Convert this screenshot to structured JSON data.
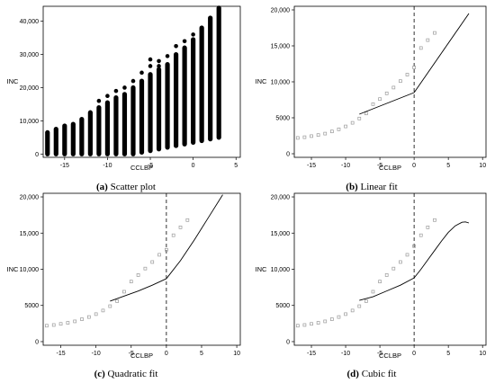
{
  "chart_data": [
    {
      "type": "scatter",
      "panel": "a",
      "caption_letter": "(a)",
      "caption_text": "Scatter plot",
      "xlabel": "CCLBP",
      "ylabel": "INC",
      "xlim": [
        -17.5,
        5.5
      ],
      "ylim": [
        -1000,
        44500
      ],
      "xticks": [
        -15,
        -10,
        -5,
        0,
        5
      ],
      "xtick_labels": [
        "-15",
        "-10",
        "-5",
        "0",
        "5"
      ],
      "yticks": [
        0,
        10000,
        20000,
        30000,
        40000
      ],
      "ytick_labels": [
        "0",
        "10,000",
        "20,000",
        "30,000",
        "40,000"
      ],
      "grid": false,
      "x": [
        -17,
        -16,
        -15,
        -14,
        -13,
        -12,
        -11,
        -10,
        -9,
        -8,
        -7,
        -6,
        -5,
        -4,
        -3,
        -2,
        -1,
        0,
        1,
        2,
        3
      ],
      "y_min": [
        0,
        0,
        0,
        0,
        0,
        0,
        0,
        0,
        0,
        0,
        0,
        500,
        1000,
        1500,
        2000,
        2500,
        3000,
        3500,
        4000,
        4500,
        5000
      ],
      "y_max": [
        6500,
        7500,
        8500,
        9000,
        10500,
        12500,
        14000,
        15500,
        17000,
        18000,
        20000,
        22000,
        24000,
        25500,
        27000,
        30000,
        32000,
        34500,
        38000,
        41000,
        44000
      ],
      "outliers": [
        {
          "x": -11,
          "y": 16000
        },
        {
          "x": -10,
          "y": 17500
        },
        {
          "x": -9,
          "y": 19000
        },
        {
          "x": -8,
          "y": 20000
        },
        {
          "x": -7,
          "y": 22000
        },
        {
          "x": -6,
          "y": 24500
        },
        {
          "x": -5,
          "y": 26500
        },
        {
          "x": -5,
          "y": 28500
        },
        {
          "x": -4,
          "y": 26500
        },
        {
          "x": -4,
          "y": 28000
        },
        {
          "x": -3,
          "y": 29500
        },
        {
          "x": -2,
          "y": 32500
        },
        {
          "x": -1,
          "y": 34000
        },
        {
          "x": 0,
          "y": 36000
        }
      ]
    },
    {
      "type": "line",
      "panel": "b",
      "caption_letter": "(b)",
      "caption_text": "Linear fit",
      "xlabel": "CCLBP",
      "ylabel": "INC",
      "xlim": [
        -17.5,
        10.5
      ],
      "ylim": [
        -500,
        20500
      ],
      "xticks": [
        -15,
        -10,
        -5,
        0,
        5,
        10
      ],
      "xtick_labels": [
        "-15",
        "-10",
        "-5",
        "0",
        "5",
        "10"
      ],
      "yticks": [
        0,
        5000,
        10000,
        15000,
        20000
      ],
      "ytick_labels": [
        "0",
        "5000",
        "10,000",
        "15,000",
        "20,000"
      ],
      "grid": false,
      "cutoff_x": 0,
      "bin_x": [
        -17,
        -16,
        -15,
        -14,
        -13,
        -12,
        -11,
        -10,
        -9,
        -8,
        -7,
        -6,
        -5,
        -4,
        -3,
        -2,
        -1,
        0,
        1,
        2,
        3
      ],
      "bin_y": [
        2200,
        2300,
        2450,
        2600,
        2800,
        3100,
        3400,
        3800,
        4300,
        4900,
        5600,
        6900,
        7600,
        8400,
        9200,
        10100,
        11000,
        12000,
        14700,
        15800,
        16800
      ],
      "fit_left": {
        "x": [
          -8,
          0
        ],
        "y": [
          5500,
          8500
        ]
      },
      "fit_right": {
        "x": [
          0,
          8
        ],
        "y": [
          8500,
          19500
        ]
      }
    },
    {
      "type": "line",
      "panel": "c",
      "caption_letter": "(c)",
      "caption_text": "Quadratic fit",
      "xlabel": "CCLBP",
      "ylabel": "INC",
      "xlim": [
        -17.5,
        10.5
      ],
      "ylim": [
        -500,
        20500
      ],
      "xticks": [
        -15,
        -10,
        -5,
        0,
        5,
        10
      ],
      "xtick_labels": [
        "-15",
        "-10",
        "-5",
        "0",
        "5",
        "10"
      ],
      "yticks": [
        0,
        5000,
        10000,
        15000,
        20000
      ],
      "ytick_labels": [
        "0",
        "5000",
        "10,000",
        "15,000",
        "20,000"
      ],
      "grid": false,
      "cutoff_x": 0,
      "bin_x": [
        -17,
        -16,
        -15,
        -14,
        -13,
        -12,
        -11,
        -10,
        -9,
        -8,
        -7,
        -6,
        -5,
        -4,
        -3,
        -2,
        -1,
        0,
        1,
        2,
        3
      ],
      "bin_y": [
        2200,
        2300,
        2450,
        2600,
        2800,
        3100,
        3400,
        3800,
        4300,
        4900,
        5600,
        6900,
        8300,
        9200,
        10100,
        11000,
        12000,
        12700,
        14700,
        15800,
        16800
      ],
      "fit_left": {
        "x": [
          -8,
          -6,
          -4,
          -2,
          0
        ],
        "y": [
          5600,
          6300,
          7000,
          7800,
          8700
        ]
      },
      "fit_right": {
        "x": [
          0,
          2,
          4,
          6,
          8
        ],
        "y": [
          8700,
          11200,
          14100,
          17200,
          20300
        ]
      }
    },
    {
      "type": "line",
      "panel": "d",
      "caption_letter": "(d)",
      "caption_text": "Cubic fit",
      "xlabel": "CCLBP",
      "ylabel": "INC",
      "xlim": [
        -17.5,
        10.5
      ],
      "ylim": [
        -500,
        20500
      ],
      "xticks": [
        -15,
        -10,
        -5,
        0,
        5,
        10
      ],
      "xtick_labels": [
        "-15",
        "-10",
        "-5",
        "0",
        "5",
        "10"
      ],
      "yticks": [
        0,
        5000,
        10000,
        15000,
        20000
      ],
      "ytick_labels": [
        "0",
        "5000",
        "10,000",
        "15,000",
        "20,000"
      ],
      "grid": false,
      "cutoff_x": 0,
      "bin_x": [
        -17,
        -16,
        -15,
        -14,
        -13,
        -12,
        -11,
        -10,
        -9,
        -8,
        -7,
        -6,
        -5,
        -4,
        -3,
        -2,
        -1,
        0,
        1,
        2,
        3
      ],
      "bin_y": [
        2200,
        2300,
        2450,
        2600,
        2800,
        3100,
        3400,
        3800,
        4300,
        4900,
        5600,
        6900,
        8300,
        9200,
        10100,
        11000,
        12000,
        13200,
        14700,
        15800,
        16800
      ],
      "fit_left": {
        "x": [
          -8,
          -6,
          -4,
          -2,
          0
        ],
        "y": [
          5700,
          6200,
          7000,
          7800,
          8800
        ]
      },
      "fit_right": {
        "x": [
          0,
          1,
          2,
          3,
          4,
          5,
          6,
          7,
          7.5,
          8
        ],
        "y": [
          8800,
          10000,
          11300,
          12600,
          13900,
          15100,
          16000,
          16500,
          16550,
          16400
        ]
      }
    }
  ]
}
